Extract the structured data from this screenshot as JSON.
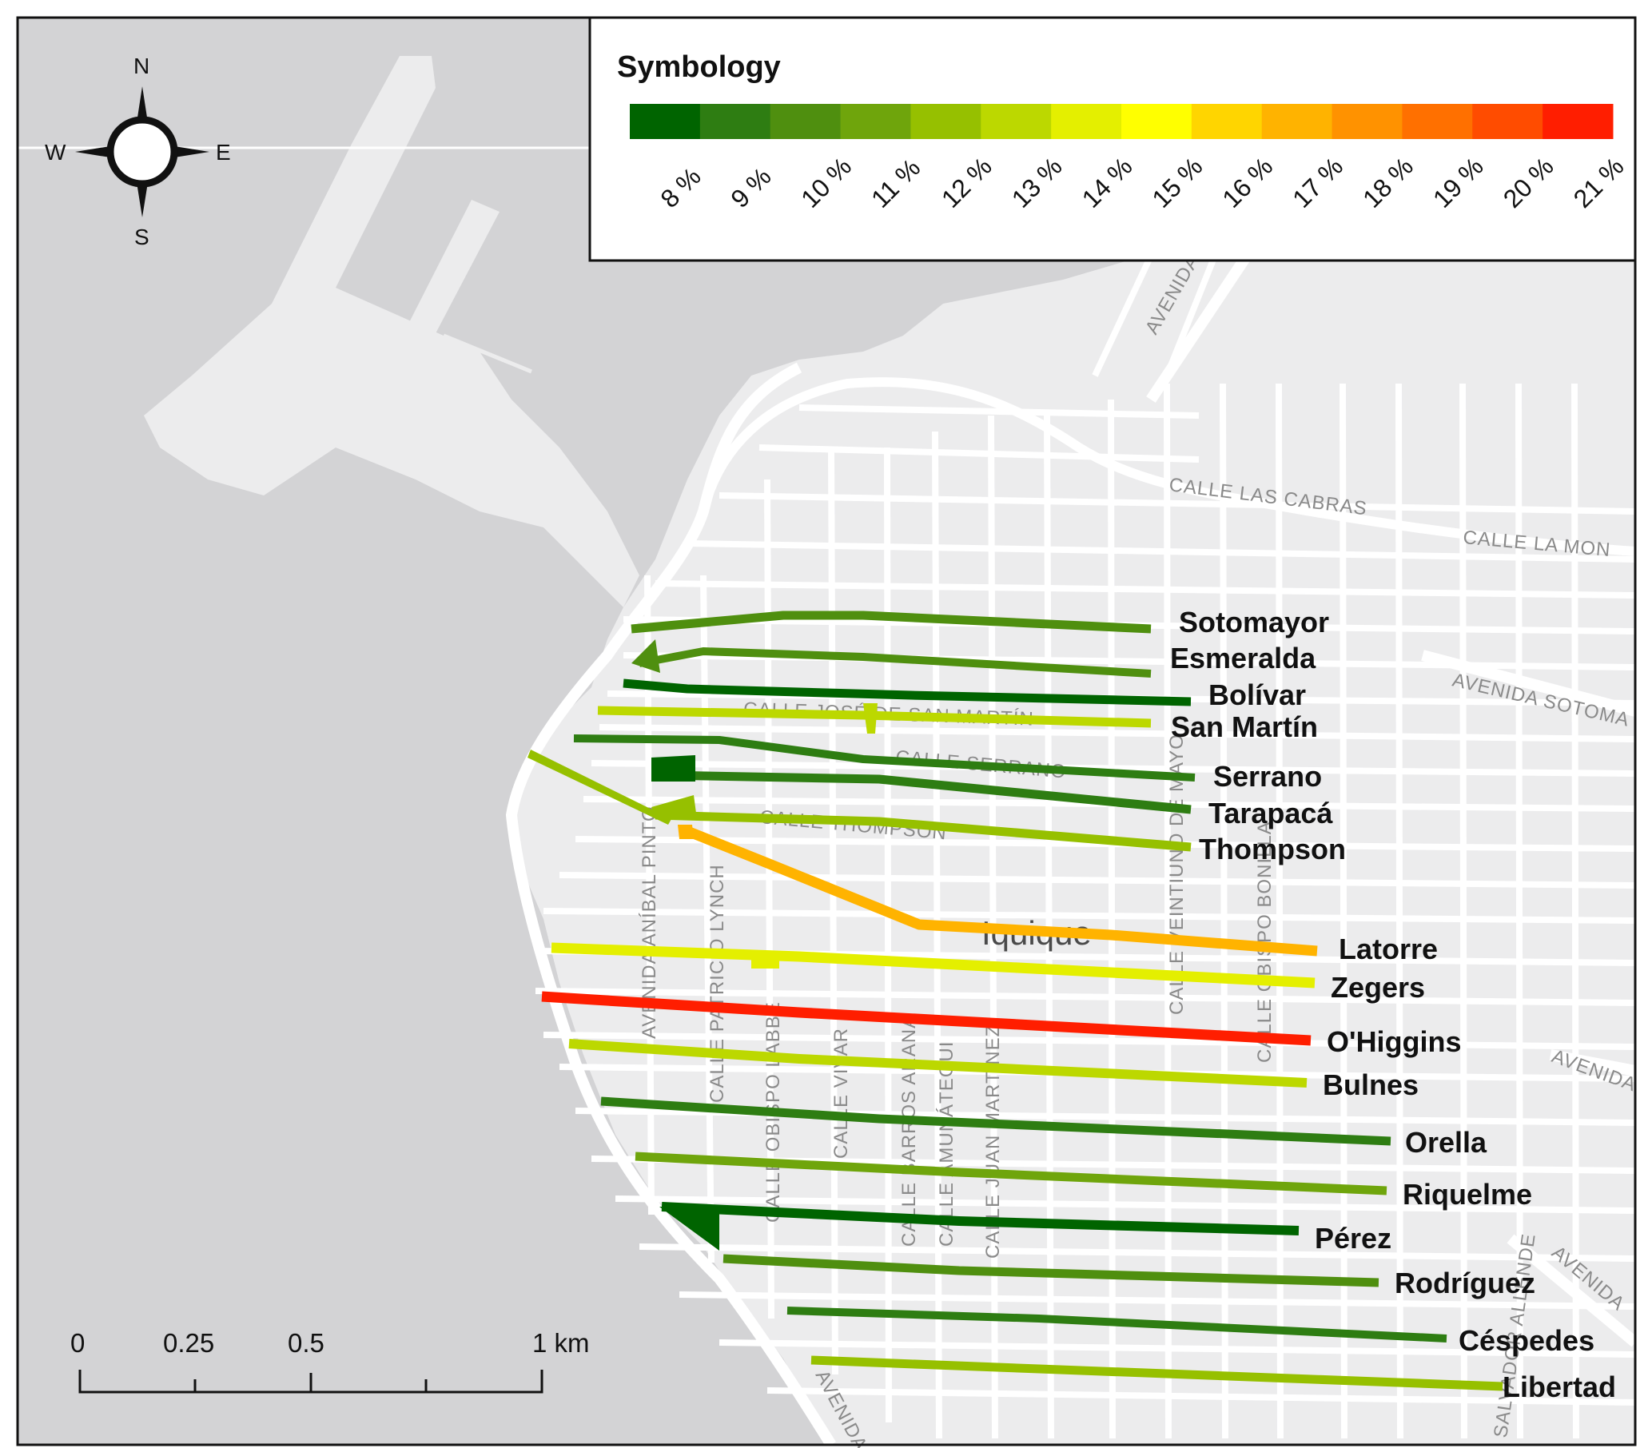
{
  "legend": {
    "title": "Symbology",
    "classes": [
      {
        "label": "8 %",
        "color": "#006400"
      },
      {
        "label": "9 %",
        "color": "#2e7d12"
      },
      {
        "label": "10 %",
        "color": "#4f8f0f"
      },
      {
        "label": "11 %",
        "color": "#6fa50c"
      },
      {
        "label": "12 %",
        "color": "#96c000"
      },
      {
        "label": "13 %",
        "color": "#bcd800"
      },
      {
        "label": "14 %",
        "color": "#e4ef00"
      },
      {
        "label": "15 %",
        "color": "#ffff00"
      },
      {
        "label": "16 %",
        "color": "#ffd500"
      },
      {
        "label": "17 %",
        "color": "#ffb300"
      },
      {
        "label": "18 %",
        "color": "#ff9200"
      },
      {
        "label": "19 %",
        "color": "#ff7000"
      },
      {
        "label": "20 %",
        "color": "#ff4c00"
      },
      {
        "label": "21 %",
        "color": "#ff1e00"
      }
    ]
  },
  "compass": {
    "north": "N",
    "south": "S",
    "east": "E",
    "west": "W"
  },
  "scale_bar": {
    "labels": [
      "0",
      "0.25",
      "0.5",
      "1 km"
    ]
  },
  "city_label": "Iquique",
  "basemap_labels": {
    "calle_las_cabras": "CALLE LAS CABRAS",
    "calle_la_mon": "CALLE LA MON",
    "avenida_sotoma": "AVENIDA SOTOMA",
    "avenida_top": "AVENIDA",
    "avenida_right": "AVENIDA",
    "avenida_lower_right": "AVENIDA",
    "avenida_bottom": "AVENIDA",
    "calle_jose_san_martin": "CALLE JOSÉ DE SAN MARTÍN",
    "calle_serrano": "CALLE SERRANO",
    "calle_thompson": "CALLE THOMPSON",
    "avenida_anibal_pinto": "AVENIDA ANÍBAL PINTO",
    "calle_patricio_lynch": "CALLE PATRICIO LYNCH",
    "calle_obispo_labbe": "CALLE OBISPO LABBE",
    "calle_vivar": "CALLE VIVAR",
    "calle_barros_arana": "CALLE BARROS ARANA",
    "calle_amunategui": "CALLE AMUNÁTEGUI",
    "calle_juan_martinez": "CALLE JUAN MARTÍNEZ",
    "calle_veintiuno_de_mayo": "CALLE VEINTIUNO DE MAYO",
    "calle_obispo_bonilla": "CALLE OBISPO BONILLA",
    "salvador_allende": "SALVADOR ALLENDE"
  },
  "streets": [
    {
      "name": "Sotomayor",
      "value_pct": 10
    },
    {
      "name": "Esmeralda",
      "value_pct": 10
    },
    {
      "name": "Bolívar",
      "value_pct": 8
    },
    {
      "name": "San Martín",
      "value_pct": 13
    },
    {
      "name": "Serrano",
      "value_pct": 9
    },
    {
      "name": "Tarapacá",
      "value_pct": 9
    },
    {
      "name": "Thompson",
      "value_pct": 12
    },
    {
      "name": "Latorre",
      "value_pct": 17
    },
    {
      "name": "Zegers",
      "value_pct": 14
    },
    {
      "name": "O'Higgins",
      "value_pct": 21
    },
    {
      "name": "Bulnes",
      "value_pct": 13
    },
    {
      "name": "Orella",
      "value_pct": 9
    },
    {
      "name": "Riquelme",
      "value_pct": 11
    },
    {
      "name": "Pérez",
      "value_pct": 8
    },
    {
      "name": "Rodríguez",
      "value_pct": 10
    },
    {
      "name": "Céspedes",
      "value_pct": 9
    },
    {
      "name": "Libertad",
      "value_pct": 12
    }
  ]
}
